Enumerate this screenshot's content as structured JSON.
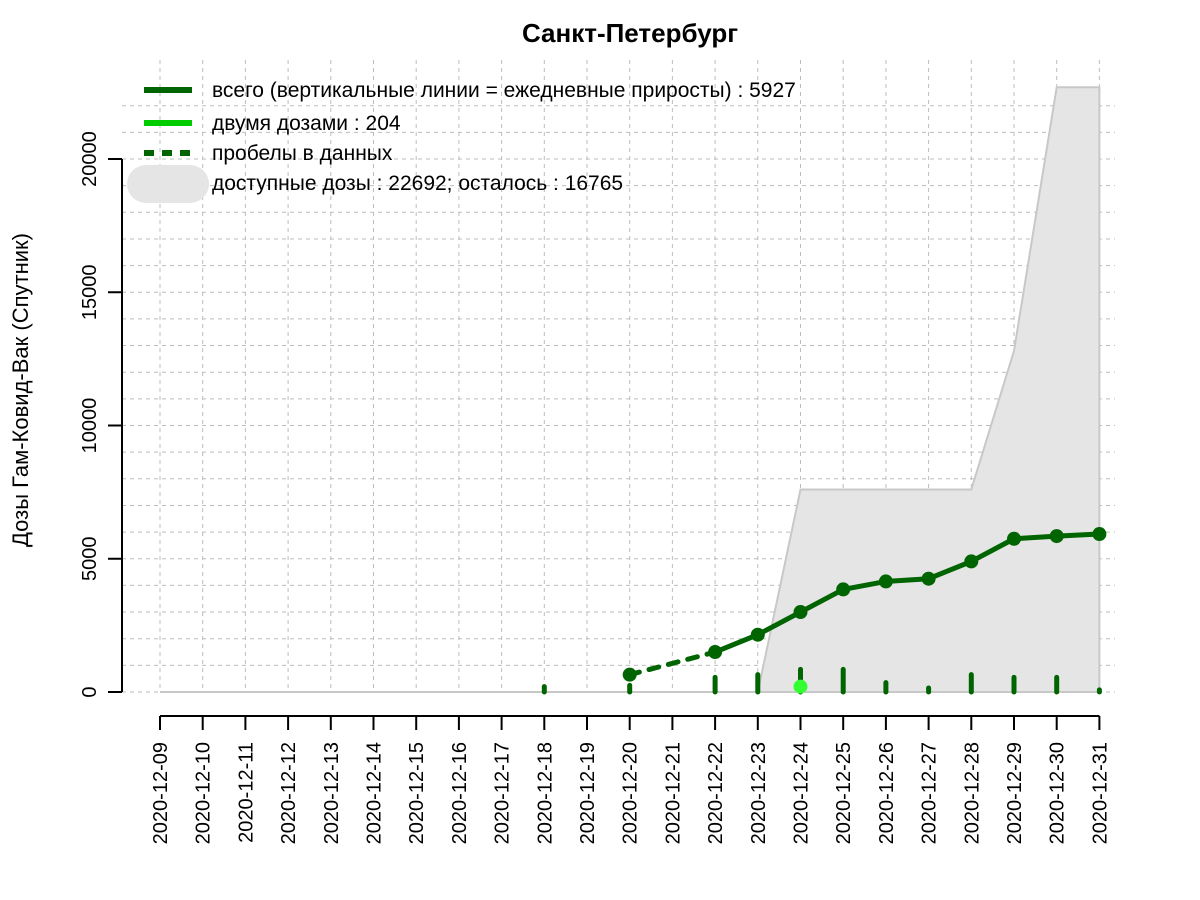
{
  "chart_data": {
    "type": "line",
    "title": "Санкт-Петербург",
    "xlabel": "",
    "ylabel": "Дозы Гам-Ковид-Вак (Спутник)",
    "ylim": [
      0,
      22692
    ],
    "yticks": [
      0,
      5000,
      10000,
      15000,
      20000
    ],
    "x": [
      "2020-12-09",
      "2020-12-10",
      "2020-12-11",
      "2020-12-12",
      "2020-12-13",
      "2020-12-14",
      "2020-12-15",
      "2020-12-16",
      "2020-12-17",
      "2020-12-18",
      "2020-12-19",
      "2020-12-20",
      "2020-12-21",
      "2020-12-22",
      "2020-12-23",
      "2020-12-24",
      "2020-12-25",
      "2020-12-26",
      "2020-12-27",
      "2020-12-28",
      "2020-12-29",
      "2020-12-30",
      "2020-12-31"
    ],
    "grid": true,
    "legend_position": "top-left",
    "legend": [
      {
        "key": "total",
        "text": "всего (вертикальные линии = ежедневные приросты) : 5927"
      },
      {
        "key": "two_doses",
        "text": "двумя дозами : 204"
      },
      {
        "key": "gaps",
        "text": "пробелы в данных"
      },
      {
        "key": "available",
        "text": "доступные дозы : 22692; осталось : 16765"
      }
    ],
    "series": [
      {
        "key": "total",
        "points": [
          {
            "x": "2020-12-20",
            "y": 650
          },
          {
            "x": "2020-12-22",
            "y": 1500
          },
          {
            "x": "2020-12-23",
            "y": 2150
          },
          {
            "x": "2020-12-24",
            "y": 3000
          },
          {
            "x": "2020-12-25",
            "y": 3850
          },
          {
            "x": "2020-12-26",
            "y": 4150
          },
          {
            "x": "2020-12-27",
            "y": 4250
          },
          {
            "x": "2020-12-28",
            "y": 4900
          },
          {
            "x": "2020-12-29",
            "y": 5750
          },
          {
            "x": "2020-12-30",
            "y": 5850
          },
          {
            "x": "2020-12-31",
            "y": 5927
          }
        ],
        "gap_segments": [
          [
            "2020-12-20",
            "2020-12-22"
          ]
        ]
      },
      {
        "key": "two_doses",
        "points": [
          {
            "x": "2020-12-24",
            "y": 204
          }
        ]
      },
      {
        "key": "daily_increments",
        "points": [
          {
            "x": "2020-12-18",
            "y": 200
          },
          {
            "x": "2020-12-20",
            "y": 250
          },
          {
            "x": "2020-12-22",
            "y": 550
          },
          {
            "x": "2020-12-23",
            "y": 650
          },
          {
            "x": "2020-12-24",
            "y": 850
          },
          {
            "x": "2020-12-25",
            "y": 850
          },
          {
            "x": "2020-12-26",
            "y": 350
          },
          {
            "x": "2020-12-27",
            "y": 150
          },
          {
            "x": "2020-12-28",
            "y": 650
          },
          {
            "x": "2020-12-29",
            "y": 550
          },
          {
            "x": "2020-12-30",
            "y": 550
          },
          {
            "x": "2020-12-31",
            "y": 80
          }
        ]
      },
      {
        "key": "available",
        "points": [
          {
            "x": "2020-12-09",
            "y": 0
          },
          {
            "x": "2020-12-23",
            "y": 0
          },
          {
            "x": "2020-12-24",
            "y": 7600
          },
          {
            "x": "2020-12-28",
            "y": 7600
          },
          {
            "x": "2020-12-29",
            "y": 12800
          },
          {
            "x": "2020-12-30",
            "y": 22692
          },
          {
            "x": "2020-12-31",
            "y": 22692
          }
        ]
      }
    ],
    "colors": {
      "total": "#006400",
      "two_doses": "#00cc00",
      "two_doses_marker": "#33ff33",
      "available_fill": "#e5e5e5",
      "available_stroke": "#c8c8c8",
      "grid": "#bdbdbd"
    }
  }
}
